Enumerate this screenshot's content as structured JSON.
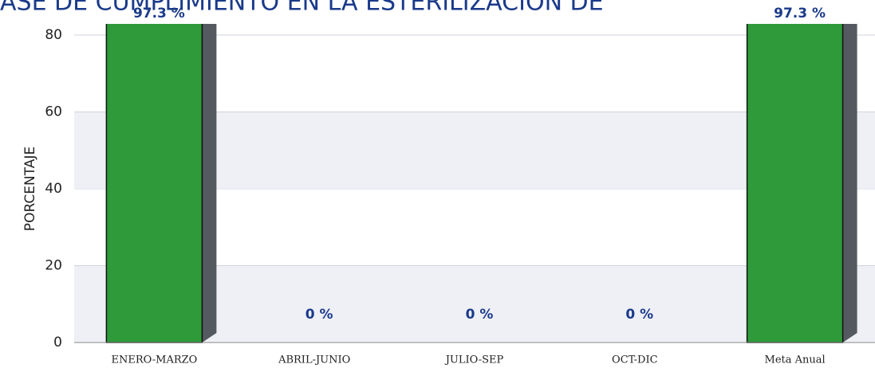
{
  "chart_data": {
    "type": "bar",
    "title": "ASE DE CUMPLIMIENTO EN LA ESTERILIZACION DE",
    "ylabel": "PORCENTAJE",
    "categories": [
      "ENERO-MARZO",
      "ABRIL-JUNIO",
      "JULIO-SEP",
      "OCT-DIC",
      "Meta Anual"
    ],
    "values": [
      97.3,
      0,
      0,
      0,
      97.3
    ],
    "value_labels": [
      "97.3 %",
      "0 %",
      "0 %",
      "0 %",
      "97.3 %"
    ],
    "color": "#2e9a3a",
    "ylim": [
      0,
      80
    ],
    "yticks": [
      0,
      20,
      40,
      60,
      80
    ],
    "grid": true
  }
}
